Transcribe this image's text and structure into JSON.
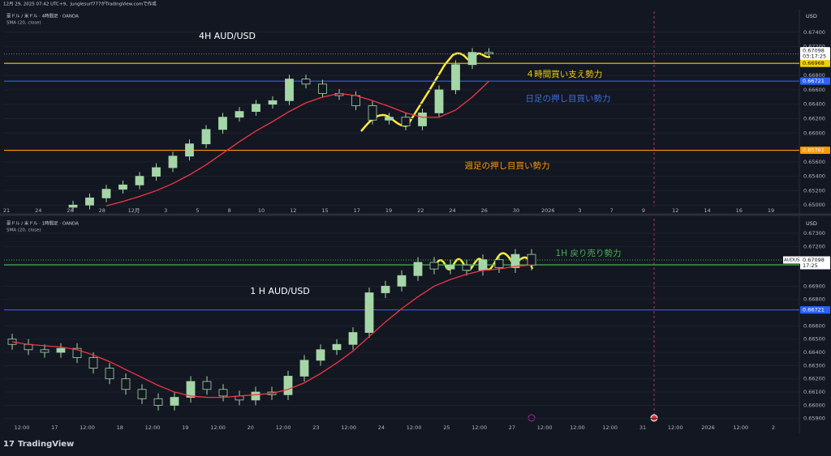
{
  "header": "12月 29, 2025 07:42 UTC+9、junglesurf777がTradingView.comで作成",
  "footer": "TradingView",
  "chart_data": [
    {
      "type": "candlestick",
      "title": "4H AUD/USD",
      "symbol": "豪ドル / 米ドル · 4時間足 · OANDA",
      "currency": "USD",
      "up_color": "#a5d6a7",
      "down_color": "#131722",
      "open": [
        0.6497,
        0.65,
        0.651,
        0.6522,
        0.6528,
        0.654,
        0.6552,
        0.6568,
        0.6585,
        0.6605,
        0.6622,
        0.663,
        0.664,
        0.6645,
        0.6675,
        0.6668,
        0.6655,
        0.6652,
        0.6638,
        0.6618,
        0.6622,
        0.661,
        0.6628,
        0.666,
        0.6695,
        0.6712
      ],
      "high": [
        0.6506,
        0.6516,
        0.6528,
        0.6534,
        0.6546,
        0.6558,
        0.6574,
        0.6591,
        0.6611,
        0.6628,
        0.6636,
        0.6646,
        0.6651,
        0.6681,
        0.6681,
        0.6674,
        0.6661,
        0.6658,
        0.6644,
        0.6628,
        0.6628,
        0.6634,
        0.6666,
        0.6701,
        0.6718,
        0.6718
      ],
      "low": [
        0.6491,
        0.6494,
        0.6504,
        0.6516,
        0.6522,
        0.6534,
        0.6546,
        0.6562,
        0.6579,
        0.6599,
        0.6616,
        0.6624,
        0.6634,
        0.6639,
        0.6662,
        0.6649,
        0.6646,
        0.6632,
        0.6612,
        0.6612,
        0.6604,
        0.6604,
        0.6622,
        0.6654,
        0.6689,
        0.6704
      ],
      "close": [
        0.65,
        0.651,
        0.6522,
        0.6528,
        0.654,
        0.6552,
        0.6568,
        0.6585,
        0.6605,
        0.6622,
        0.663,
        0.664,
        0.6645,
        0.6675,
        0.6668,
        0.6655,
        0.6652,
        0.6638,
        0.6618,
        0.6622,
        0.661,
        0.6628,
        0.666,
        0.6695,
        0.6712,
        0.671
      ],
      "sma": {
        "name": "SMA (20, close)",
        "color": "#f23645",
        "values": [
          null,
          null,
          0.6499,
          0.6505,
          0.6512,
          0.652,
          0.653,
          0.6542,
          0.6556,
          0.6572,
          0.6588,
          0.6603,
          0.6616,
          0.663,
          0.6642,
          0.665,
          0.6655,
          0.6652,
          0.6645,
          0.6637,
          0.6628,
          0.6622,
          0.6622,
          0.6632,
          0.665,
          0.6672
        ]
      },
      "ylim": [
        0.6498,
        0.6769
      ],
      "yticks": [
        {
          "value": 0.674,
          "label": "0.67400"
        },
        {
          "value": 0.672,
          "label": "0.67200"
        },
        {
          "value": 0.668,
          "label": "0.66800"
        },
        {
          "value": 0.666,
          "label": "0.66600"
        },
        {
          "value": 0.664,
          "label": "0.66400"
        },
        {
          "value": 0.662,
          "label": "0.66200"
        },
        {
          "value": 0.66,
          "label": "0.66000"
        },
        {
          "value": 0.656,
          "label": "0.65600"
        },
        {
          "value": 0.654,
          "label": "0.65400"
        },
        {
          "value": 0.652,
          "label": "0.65200"
        },
        {
          "value": 0.65,
          "label": "0.65000"
        }
      ],
      "xlabels": [
        "21",
        "24",
        "26",
        "28",
        "12月",
        "3",
        "5",
        "8",
        "10",
        "12",
        "15",
        "17",
        "19",
        "22",
        "24",
        "26",
        "30",
        "2026",
        "3",
        "7",
        "9",
        "12",
        "14",
        "16",
        "19"
      ],
      "price": {
        "value": 0.67098,
        "label": "0.67098",
        "countdown": "03:17:25",
        "color": "#787b86"
      },
      "levels": [
        {
          "value": 0.66968,
          "label": "0.66968",
          "color": "#f0d000"
        },
        {
          "value": 0.66721,
          "label": "0.66721",
          "color": "#2962ff"
        },
        {
          "value": 0.65761,
          "label": "0.65761",
          "color": "#ff9800"
        }
      ],
      "annotations": [
        {
          "text": "４時間買い支え勢力",
          "color": "#f0d000"
        },
        {
          "text": "日足の押し目買い勢力",
          "color": "#3d6fe0"
        },
        {
          "text": "週足の押し目買い勢力",
          "color": "#ff9800"
        }
      ]
    },
    {
      "type": "candlestick",
      "title": "1 H  AUD/USD",
      "symbol": "豪ドル / 米ドル · 1時間足 · OANDA",
      "currency": "USD",
      "up_color": "#a5d6a7",
      "down_color": "#131722",
      "open": [
        0.665,
        0.6646,
        0.6642,
        0.664,
        0.6643,
        0.6636,
        0.6628,
        0.662,
        0.6612,
        0.6605,
        0.66,
        0.6606,
        0.6618,
        0.6612,
        0.6607,
        0.6604,
        0.661,
        0.6608,
        0.6622,
        0.6634,
        0.6642,
        0.6646,
        0.6655,
        0.6685,
        0.669,
        0.6698,
        0.6708,
        0.6703,
        0.6706,
        0.6702,
        0.671,
        0.6704,
        0.6714
      ],
      "high": [
        0.6654,
        0.665,
        0.6646,
        0.6647,
        0.6647,
        0.664,
        0.6632,
        0.6624,
        0.6616,
        0.6609,
        0.661,
        0.6622,
        0.6622,
        0.6616,
        0.6611,
        0.6614,
        0.6614,
        0.6626,
        0.6638,
        0.6646,
        0.665,
        0.6659,
        0.6689,
        0.6694,
        0.6702,
        0.6712,
        0.6712,
        0.671,
        0.671,
        0.6714,
        0.6714,
        0.6718,
        0.6718
      ],
      "low": [
        0.6642,
        0.6638,
        0.6636,
        0.6636,
        0.6632,
        0.6624,
        0.6616,
        0.6608,
        0.6601,
        0.6596,
        0.6596,
        0.6602,
        0.6608,
        0.6603,
        0.66,
        0.66,
        0.6604,
        0.6604,
        0.6618,
        0.663,
        0.6638,
        0.6642,
        0.6651,
        0.6681,
        0.6686,
        0.6694,
        0.6699,
        0.6699,
        0.6698,
        0.6698,
        0.67,
        0.67,
        0.6702
      ],
      "close": [
        0.6646,
        0.6642,
        0.664,
        0.6643,
        0.6636,
        0.6628,
        0.662,
        0.6612,
        0.6605,
        0.66,
        0.6606,
        0.6618,
        0.6612,
        0.6607,
        0.6604,
        0.661,
        0.6608,
        0.6622,
        0.6634,
        0.6642,
        0.6646,
        0.6655,
        0.6685,
        0.669,
        0.6698,
        0.6708,
        0.6703,
        0.6706,
        0.6702,
        0.671,
        0.6704,
        0.6714,
        0.6706
      ],
      "sma": {
        "name": "SMA (20, close)",
        "color": "#f23645",
        "values": [
          0.6648,
          0.6646,
          0.6645,
          0.6644,
          0.6642,
          0.6638,
          0.6633,
          0.6627,
          0.6621,
          0.6615,
          0.661,
          0.6607,
          0.6606,
          0.6606,
          0.6607,
          0.6608,
          0.6609,
          0.6612,
          0.6617,
          0.6624,
          0.6632,
          0.6641,
          0.6652,
          0.6663,
          0.6673,
          0.6682,
          0.669,
          0.6695,
          0.6699,
          0.6702,
          0.6703,
          0.6705,
          0.6706
        ]
      },
      "ylim": [
        0.6588,
        0.6741
      ],
      "yticks": [
        {
          "value": 0.673,
          "label": "0.67300"
        },
        {
          "value": 0.672,
          "label": "0.67200"
        },
        {
          "value": 0.669,
          "label": "0.66900"
        },
        {
          "value": 0.668,
          "label": "0.66800"
        },
        {
          "value": 0.666,
          "label": "0.66600"
        },
        {
          "value": 0.665,
          "label": "0.66500"
        },
        {
          "value": 0.664,
          "label": "0.66400"
        },
        {
          "value": 0.663,
          "label": "0.66300"
        },
        {
          "value": 0.662,
          "label": "0.66200"
        },
        {
          "value": 0.661,
          "label": "0.66100"
        },
        {
          "value": 0.66,
          "label": "0.66000"
        },
        {
          "value": 0.659,
          "label": "0.65900"
        }
      ],
      "xlabels": [
        "12:00",
        "17",
        "12:00",
        "18",
        "12:00",
        "19",
        "12:00",
        "20",
        "12:00",
        "23",
        "12:00",
        "24",
        "12:00",
        "25",
        "12:00",
        "27",
        "12:00",
        "12:00",
        "12:00",
        "31",
        "12:00",
        "2026",
        "12:00",
        "2"
      ],
      "price": {
        "value": 0.67098,
        "label": "0.67098",
        "countdown": "17:25",
        "symbol": "AUDUSD",
        "color": "#4caf50"
      },
      "levels": [
        {
          "value": 0.67061,
          "label": "0.67061",
          "color": "#4caf50"
        },
        {
          "value": 0.66721,
          "label": "0.66721",
          "color": "#2962ff"
        }
      ],
      "annotations": [
        {
          "text": "1H 戻り売り勢力",
          "color": "#4caf50"
        }
      ]
    }
  ]
}
